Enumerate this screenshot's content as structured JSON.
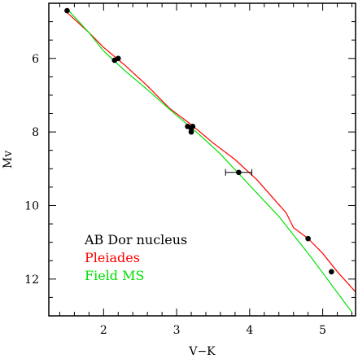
{
  "chart_data": {
    "type": "scatter",
    "xlabel": "V−K",
    "ylabel": "Mv",
    "xlim": [
      1.25,
      5.45
    ],
    "ylim": [
      13.0,
      4.5
    ],
    "y_inverted": true,
    "x_ticks": [
      2,
      3,
      4,
      5
    ],
    "y_ticks": [
      6,
      8,
      10,
      12
    ],
    "grid": false,
    "legend_position": "bottom-left",
    "legend": [
      "AB Dor nucleus",
      "Pleiades",
      "Field MS"
    ],
    "series": [
      {
        "name": "AB Dor nucleus",
        "kind": "points",
        "color": "#000000",
        "points": [
          {
            "x": 1.5,
            "y": 4.7
          },
          {
            "x": 2.15,
            "y": 6.05
          },
          {
            "x": 2.2,
            "y": 6.0
          },
          {
            "x": 3.15,
            "y": 7.85
          },
          {
            "x": 3.2,
            "y": 7.9
          },
          {
            "x": 3.22,
            "y": 7.85
          },
          {
            "x": 3.2,
            "y": 8.0
          },
          {
            "x": 3.85,
            "y": 9.1,
            "x_error": 0.18
          },
          {
            "x": 4.8,
            "y": 10.9
          },
          {
            "x": 5.12,
            "y": 11.8
          }
        ]
      },
      {
        "name": "Pleiades",
        "kind": "line",
        "color": "#ff0000",
        "points": [
          {
            "x": 1.5,
            "y": 4.75
          },
          {
            "x": 1.8,
            "y": 5.3
          },
          {
            "x": 2.0,
            "y": 5.7
          },
          {
            "x": 2.3,
            "y": 6.2
          },
          {
            "x": 2.6,
            "y": 6.75
          },
          {
            "x": 2.9,
            "y": 7.35
          },
          {
            "x": 3.2,
            "y": 7.8
          },
          {
            "x": 3.5,
            "y": 8.3
          },
          {
            "x": 3.8,
            "y": 8.75
          },
          {
            "x": 4.1,
            "y": 9.3
          },
          {
            "x": 4.3,
            "y": 9.75
          },
          {
            "x": 4.5,
            "y": 10.2
          },
          {
            "x": 4.6,
            "y": 10.6
          },
          {
            "x": 4.8,
            "y": 10.9
          },
          {
            "x": 5.0,
            "y": 11.3
          },
          {
            "x": 5.2,
            "y": 11.8
          },
          {
            "x": 5.45,
            "y": 12.35
          }
        ]
      },
      {
        "name": "Field MS",
        "kind": "line",
        "color": "#00e000",
        "points": [
          {
            "x": 1.5,
            "y": 4.65
          },
          {
            "x": 1.8,
            "y": 5.3
          },
          {
            "x": 2.0,
            "y": 5.8
          },
          {
            "x": 2.3,
            "y": 6.35
          },
          {
            "x": 2.6,
            "y": 6.85
          },
          {
            "x": 3.0,
            "y": 7.55
          },
          {
            "x": 3.3,
            "y": 8.05
          },
          {
            "x": 3.6,
            "y": 8.6
          },
          {
            "x": 4.0,
            "y": 9.45
          },
          {
            "x": 4.4,
            "y": 10.3
          },
          {
            "x": 4.8,
            "y": 11.3
          },
          {
            "x": 5.1,
            "y": 12.1
          },
          {
            "x": 5.4,
            "y": 12.9
          }
        ]
      }
    ]
  }
}
